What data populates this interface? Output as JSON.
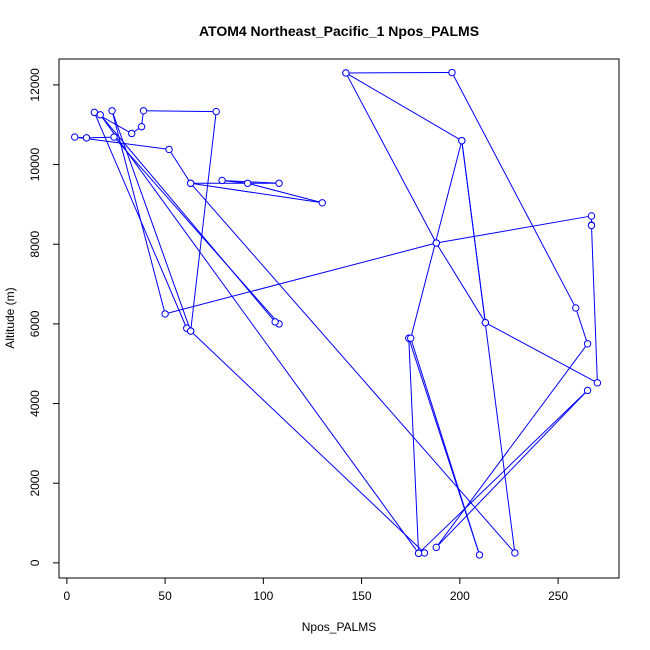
{
  "chart_data": {
    "type": "line",
    "title": "ATOM4 Northeast_Pacific_1 Npos_PALMS",
    "xlabel": "Npos_PALMS",
    "ylabel": "Altitude (m)",
    "xlim": [
      -4,
      281
    ],
    "ylim": [
      -380,
      12650
    ],
    "x_ticks": [
      0,
      50,
      100,
      150,
      200,
      250
    ],
    "y_ticks": [
      0,
      2000,
      4000,
      6000,
      8000,
      10000,
      12000
    ],
    "grid": false,
    "line_color": "#0000ff",
    "marker": "open-circle",
    "series": [
      {
        "points": [
          [
            142,
            12300
          ],
          [
            196,
            12310
          ],
          [
            259,
            6400
          ],
          [
            265,
            5500
          ],
          [
            188,
            390
          ],
          [
            265,
            4330
          ],
          [
            179,
            240
          ],
          [
            182,
            250
          ],
          [
            63,
            5820
          ],
          [
            61,
            5890
          ],
          [
            14,
            11310
          ],
          [
            33,
            10780
          ],
          [
            38,
            10950
          ],
          [
            39,
            11350
          ],
          [
            76,
            11330
          ],
          [
            63,
            5820
          ],
          [
            23,
            11350
          ],
          [
            50,
            6250
          ],
          [
            188,
            8030
          ],
          [
            267,
            8710
          ],
          [
            267,
            8480
          ],
          [
            267,
            8470
          ],
          [
            270,
            4520
          ],
          [
            213,
            6030
          ],
          [
            188,
            8030
          ],
          [
            142,
            12300
          ],
          [
            201,
            10600
          ],
          [
            228,
            250
          ],
          [
            63,
            9530
          ],
          [
            130,
            9040
          ],
          [
            92,
            9530
          ],
          [
            79,
            9600
          ],
          [
            108,
            9530
          ],
          [
            63,
            9530
          ],
          [
            52,
            10380
          ],
          [
            4,
            10690
          ],
          [
            10,
            10670
          ],
          [
            24,
            10690
          ],
          [
            108,
            6000
          ],
          [
            106,
            6050
          ],
          [
            17,
            11250
          ],
          [
            179,
            240
          ],
          [
            174,
            5640
          ],
          [
            210,
            200
          ],
          [
            175,
            5640
          ],
          [
            201,
            10600
          ],
          [
            213,
            6030
          ]
        ]
      }
    ]
  }
}
